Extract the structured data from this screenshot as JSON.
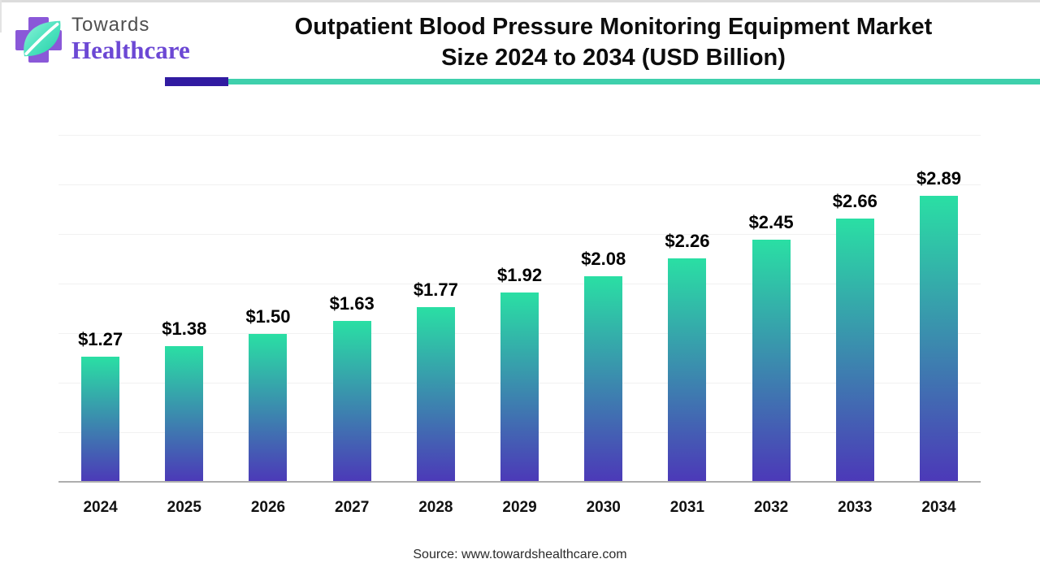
{
  "logo": {
    "line1": "Towards",
    "line2": "Healthcare"
  },
  "title": {
    "line1": "Outpatient Blood Pressure Monitoring Equipment Market",
    "line2": "Size 2024 to 2034 (USD Billion)"
  },
  "source": "Source: www.towardshealthcare.com",
  "chart_data": {
    "type": "bar",
    "title": "Outpatient Blood Pressure Monitoring Equipment Market Size 2024 to 2034 (USD Billion)",
    "unit": "USD Billion",
    "categories": [
      "2024",
      "2025",
      "2026",
      "2027",
      "2028",
      "2029",
      "2030",
      "2031",
      "2032",
      "2033",
      "2034"
    ],
    "values": [
      1.27,
      1.38,
      1.5,
      1.63,
      1.77,
      1.92,
      2.08,
      2.26,
      2.45,
      2.66,
      2.89
    ],
    "data_labels": [
      "$1.27",
      "$1.38",
      "$1.50",
      "$1.63",
      "$1.77",
      "$1.92",
      "$2.08",
      "$2.26",
      "$2.45",
      "$2.66",
      "$2.89"
    ],
    "xlabel": "",
    "ylabel": "",
    "ylim": [
      0,
      3.5
    ],
    "gridline_step": 0.5,
    "grid": true,
    "legend_position": "none",
    "bar_gradient_top": "#2adfa4",
    "bar_gradient_bottom": "#4c38b8"
  },
  "colors": {
    "accent_teal": "#3ed0ac",
    "accent_indigo": "#311ba1",
    "logo_cross_purple": "#8a58d8",
    "logo_text_purple": "#6c48d4",
    "logo_text_gray": "#4f4f4f",
    "axis_line": "#aeaeae",
    "gridline": "#f1f1f1",
    "title_text": "#0d0d0d"
  }
}
